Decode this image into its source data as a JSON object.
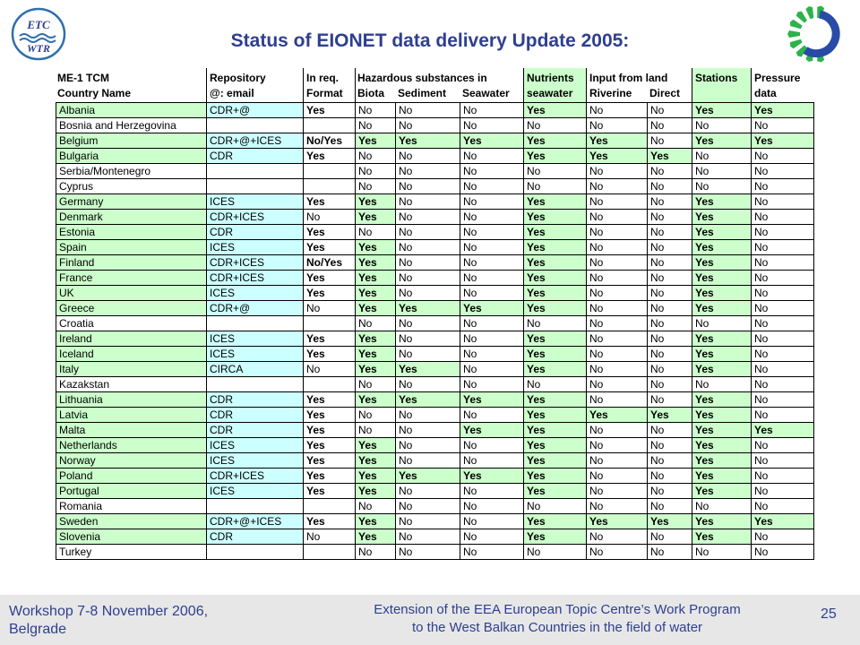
{
  "title": "Status of EIONET data delivery Update 2005:",
  "logos": {
    "left": "ETC WTR",
    "right": "sun-gear-logo"
  },
  "headers": {
    "country_line1": "ME-1 TCM",
    "country_line2": "Country Name",
    "repo_line1": "Repository",
    "repo_line2": "@: email",
    "inreq_line1": "In req.",
    "inreq_line2": "Format",
    "hazardous": "Hazardous substances in",
    "biota": "Biota",
    "sediment": "Sediment",
    "seawater": "Seawater",
    "nutrients_line1": "Nutrients",
    "nutrients_line2": "seawater",
    "inputland": "Input from land",
    "riverine": "Riverine",
    "direct": "Direct",
    "stations": "Stations",
    "pressure_line1": "Pressure",
    "pressure_line2": "data"
  },
  "rows": [
    [
      "Albania",
      "CDR+@",
      "Yes",
      "No",
      "No",
      "No",
      "Yes",
      "No",
      "No",
      "Yes",
      "Yes"
    ],
    [
      "Bosnia and Herzegovina",
      "",
      "",
      "No",
      "No",
      "No",
      "No",
      "No",
      "No",
      "No",
      "No"
    ],
    [
      "Belgium",
      "CDR+@+ICES",
      "No/Yes",
      "Yes",
      "Yes",
      "Yes",
      "Yes",
      "Yes",
      "No",
      "Yes",
      "Yes"
    ],
    [
      "Bulgaria",
      "CDR",
      "Yes",
      "No",
      "No",
      "No",
      "Yes",
      "Yes",
      "Yes",
      "No",
      "No"
    ],
    [
      "Serbia/Montenegro",
      "",
      "",
      "No",
      "No",
      "No",
      "No",
      "No",
      "No",
      "No",
      "No"
    ],
    [
      "Cyprus",
      "",
      "",
      "No",
      "No",
      "No",
      "No",
      "No",
      "No",
      "No",
      "No"
    ],
    [
      "Germany",
      "ICES",
      "Yes",
      "Yes",
      "No",
      "No",
      "Yes",
      "No",
      "No",
      "Yes",
      "No"
    ],
    [
      "Denmark",
      "CDR+ICES",
      "No",
      "Yes",
      "No",
      "No",
      "Yes",
      "No",
      "No",
      "Yes",
      "No"
    ],
    [
      "Estonia",
      "CDR",
      "Yes",
      "No",
      "No",
      "No",
      "Yes",
      "No",
      "No",
      "Yes",
      "No"
    ],
    [
      "Spain",
      "ICES",
      "Yes",
      "Yes",
      "No",
      "No",
      "Yes",
      "No",
      "No",
      "Yes",
      "No"
    ],
    [
      "Finland",
      "CDR+ICES",
      "No/Yes",
      "Yes",
      "No",
      "No",
      "Yes",
      "No",
      "No",
      "Yes",
      "No"
    ],
    [
      "France",
      "CDR+ICES",
      "Yes",
      "Yes",
      "No",
      "No",
      "Yes",
      "No",
      "No",
      "Yes",
      "No"
    ],
    [
      "UK",
      "ICES",
      "Yes",
      "Yes",
      "No",
      "No",
      "Yes",
      "No",
      "No",
      "Yes",
      "No"
    ],
    [
      "Greece",
      "CDR+@",
      "No",
      "Yes",
      "Yes",
      "Yes",
      "Yes",
      "No",
      "No",
      "Yes",
      "No"
    ],
    [
      "Croatia",
      "",
      "",
      "No",
      "No",
      "No",
      "No",
      "No",
      "No",
      "No",
      "No"
    ],
    [
      "Ireland",
      "ICES",
      "Yes",
      "Yes",
      "No",
      "No",
      "Yes",
      "No",
      "No",
      "Yes",
      "No"
    ],
    [
      "Iceland",
      "ICES",
      "Yes",
      "Yes",
      "No",
      "No",
      "Yes",
      "No",
      "No",
      "Yes",
      "No"
    ],
    [
      "Italy",
      "CIRCA",
      "No",
      "Yes",
      "Yes",
      "No",
      "Yes",
      "No",
      "No",
      "Yes",
      "No"
    ],
    [
      "Kazakstan",
      "",
      "",
      "No",
      "No",
      "No",
      "No",
      "No",
      "No",
      "No",
      "No"
    ],
    [
      "Lithuania",
      "CDR",
      "Yes",
      "Yes",
      "Yes",
      "Yes",
      "Yes",
      "No",
      "No",
      "Yes",
      "No"
    ],
    [
      "Latvia",
      "CDR",
      "Yes",
      "No",
      "No",
      "No",
      "Yes",
      "Yes",
      "Yes",
      "Yes",
      "No"
    ],
    [
      "Malta",
      "CDR",
      "Yes",
      "No",
      "No",
      "Yes",
      "Yes",
      "No",
      "No",
      "Yes",
      "Yes"
    ],
    [
      "Netherlands",
      "ICES",
      "Yes",
      "Yes",
      "No",
      "No",
      "Yes",
      "No",
      "No",
      "Yes",
      "No"
    ],
    [
      "Norway",
      "ICES",
      "Yes",
      "Yes",
      "No",
      "No",
      "Yes",
      "No",
      "No",
      "Yes",
      "No"
    ],
    [
      "Poland",
      "CDR+ICES",
      "Yes",
      "Yes",
      "Yes",
      "Yes",
      "Yes",
      "No",
      "No",
      "Yes",
      "No"
    ],
    [
      "Portugal",
      "ICES",
      "Yes",
      "Yes",
      "No",
      "No",
      "Yes",
      "No",
      "No",
      "Yes",
      "No"
    ],
    [
      "Romania",
      "",
      "",
      "No",
      "No",
      "No",
      "No",
      "No",
      "No",
      "No",
      "No"
    ],
    [
      "Sweden",
      "CDR+@+ICES",
      "Yes",
      "Yes",
      "No",
      "No",
      "Yes",
      "Yes",
      "Yes",
      "Yes",
      "Yes"
    ],
    [
      "Slovenia",
      "CDR",
      "No",
      "Yes",
      "No",
      "No",
      "Yes",
      "No",
      "No",
      "Yes",
      "No"
    ],
    [
      "Turkey",
      "",
      "",
      "No",
      "No",
      "No",
      "No",
      "No",
      "No",
      "No",
      "No"
    ]
  ],
  "footer": {
    "left_line1": "Workshop 7-8 November 2006,",
    "left_line2": "Belgrade",
    "center_line1": "Extension of the EEA European Topic Centre’s Work Program",
    "center_line2": "to the West Balkan Countries in the field of water",
    "page": "25"
  }
}
